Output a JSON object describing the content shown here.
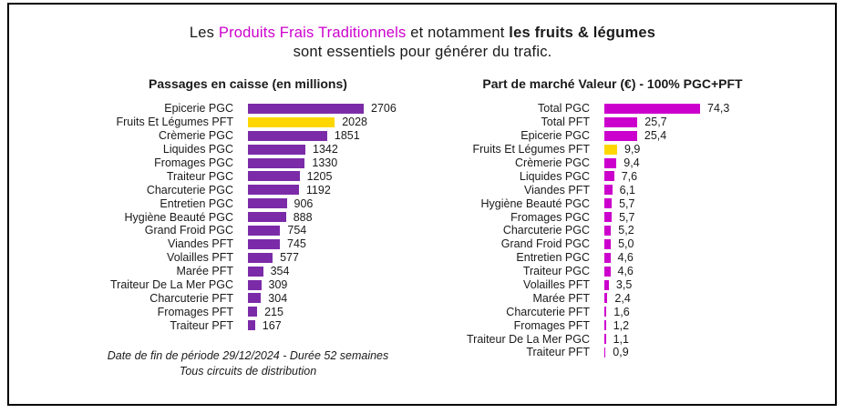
{
  "title": {
    "line1_prefix": "Les ",
    "line1_highlight": "Produits Frais Traditionnels",
    "line1_middle": " et notamment ",
    "line1_bold": "les fruits & légumes",
    "line2": "sont essentiels pour générer du trafic."
  },
  "colors": {
    "purple": "#7B2BA8",
    "magenta": "#CC00CC",
    "yellow": "#FFD700",
    "highlight_text": "#CC00CC",
    "text": "#1a1a1a",
    "border": "#000000"
  },
  "footer": {
    "line1": "Date de fin de période 29/12/2024 - Durée 52 semaines",
    "line2": "Tous circuits de distribution"
  },
  "chart_data": [
    {
      "type": "bar",
      "orientation": "horizontal",
      "title": "Passages en caisse (en millions)",
      "xlabel": "",
      "ylabel": "",
      "xlim": [
        0,
        2800
      ],
      "grid": false,
      "legend": false,
      "bar_color": "purple",
      "highlight_index": 1,
      "highlight_color": "yellow",
      "categories": [
        "Epicerie PGC",
        "Fruits Et Légumes PFT",
        "Crèmerie PGC",
        "Liquides PGC",
        "Fromages PGC",
        "Traiteur PGC",
        "Charcuterie PGC",
        "Entretien PGC",
        "Hygiène Beauté PGC",
        "Grand Froid PGC",
        "Viandes PFT",
        "Volailles PFT",
        "Marée PFT",
        "Traiteur De La Mer PGC",
        "Charcuterie PFT",
        "Fromages PFT",
        "Traiteur PFT"
      ],
      "values": [
        2706,
        2028,
        1851,
        1342,
        1330,
        1205,
        1192,
        906,
        888,
        754,
        745,
        577,
        354,
        309,
        304,
        215,
        167
      ],
      "value_labels": [
        "2706",
        "2028",
        "1851",
        "1342",
        "1330",
        "1205",
        "1192",
        "906",
        "888",
        "754",
        "745",
        "577",
        "354",
        "309",
        "304",
        "215",
        "167"
      ]
    },
    {
      "type": "bar",
      "orientation": "horizontal",
      "title": "Part de marché Valeur (€) - 100% PGC+PFT",
      "xlabel": "",
      "ylabel": "",
      "xlim": [
        0,
        80
      ],
      "grid": false,
      "legend": false,
      "bar_color": "magenta",
      "highlight_index": 3,
      "highlight_color": "yellow",
      "categories": [
        "Total PGC",
        "Total PFT",
        "Epicerie PGC",
        "Fruits Et Légumes PFT",
        "Crèmerie PGC",
        "Liquides PGC",
        "Viandes PFT",
        "Hygiène Beauté PGC",
        "Fromages PGC",
        "Charcuterie PGC",
        "Grand Froid PGC",
        "Entretien PGC",
        "Traiteur PGC",
        "Volailles PFT",
        "Marée PFT",
        "Charcuterie PFT",
        "Fromages PFT",
        "Traiteur De La Mer PGC",
        "Traiteur PFT"
      ],
      "values": [
        74.3,
        25.7,
        25.4,
        9.9,
        9.4,
        7.6,
        6.1,
        5.7,
        5.7,
        5.2,
        5.0,
        4.6,
        4.6,
        3.5,
        2.4,
        1.6,
        1.2,
        1.1,
        0.9
      ],
      "value_labels": [
        "74,3",
        "25,7",
        "25,4",
        "9,9",
        "9,4",
        "7,6",
        "6,1",
        "5,7",
        "5,7",
        "5,2",
        "5,0",
        "4,6",
        "4,6",
        "3,5",
        "2,4",
        "1,6",
        "1,2",
        "1,1",
        "0,9"
      ]
    }
  ]
}
